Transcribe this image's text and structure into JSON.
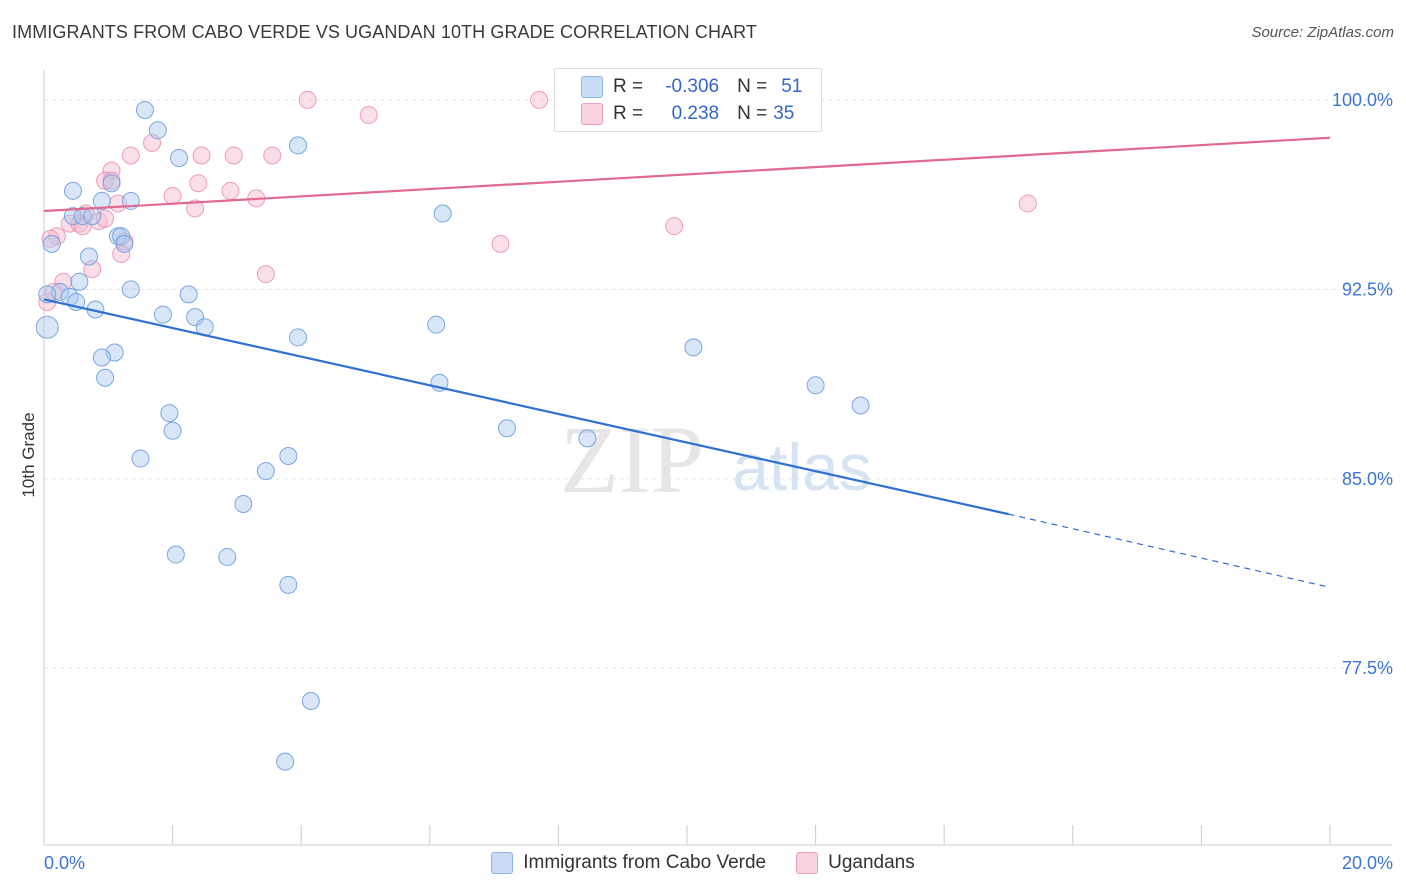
{
  "title": "IMMIGRANTS FROM CABO VERDE VS UGANDAN 10TH GRADE CORRELATION CHART",
  "source": "Source: ZipAtlas.com",
  "colors": {
    "blue_fill": "#a8c8f0",
    "blue_stroke": "#6d9ee0",
    "blue_line": "#2e6fd0",
    "pink_fill": "#f7b8cc",
    "pink_stroke": "#e88aa8",
    "pink_line": "#e06a90",
    "tick_label": "#3d74d4"
  },
  "stats": {
    "row1": {
      "r_label": "R =",
      "r_value": "-0.306",
      "n_label": "N =",
      "n_value": "51"
    },
    "row2": {
      "r_label": "R =",
      "r_value": "0.238",
      "n_label": "N =",
      "n_value": "35"
    }
  },
  "watermark": {
    "zip": "ZIP",
    "atlas": "atlas"
  },
  "chart_data": {
    "type": "scatter",
    "title": "IMMIGRANTS FROM CABO VERDE VS UGANDAN 10TH GRADE CORRELATION CHART",
    "xlabel": "",
    "ylabel": "10th Grade",
    "xlim": [
      0,
      20
    ],
    "ylim": [
      70.5,
      101.5
    ],
    "x_tick_labels": [
      "0.0%",
      "20.0%"
    ],
    "y_ticks": [
      77.5,
      85.0,
      92.5,
      100.0
    ],
    "y_tick_labels": [
      "77.5%",
      "85.0%",
      "92.5%",
      "100.0%"
    ],
    "grid": true,
    "legend_position": "bottom",
    "series": [
      {
        "name": "Immigrants from Cabo Verde",
        "color": "#a8c8f0",
        "trend": {
          "x0": 0.0,
          "y0": 92.1,
          "x1": 15.0,
          "y1": 83.6,
          "dash_to_x": 20.0,
          "dash_to_y": 80.7
        },
        "points": [
          [
            1.57,
            99.6
          ],
          [
            1.77,
            98.8
          ],
          [
            1.05,
            96.7
          ],
          [
            0.45,
            96.4
          ],
          [
            0.9,
            96.0
          ],
          [
            1.35,
            96.0
          ],
          [
            2.1,
            97.7
          ],
          [
            3.95,
            98.2
          ],
          [
            0.45,
            95.4
          ],
          [
            0.6,
            95.4
          ],
          [
            0.75,
            95.4
          ],
          [
            1.15,
            94.6
          ],
          [
            1.2,
            94.6
          ],
          [
            1.25,
            94.3
          ],
          [
            0.12,
            94.3
          ],
          [
            0.7,
            93.8
          ],
          [
            0.25,
            92.4
          ],
          [
            0.4,
            92.2
          ],
          [
            0.5,
            92.0
          ],
          [
            1.35,
            92.5
          ],
          [
            2.25,
            92.3
          ],
          [
            0.8,
            91.7
          ],
          [
            1.85,
            91.5
          ],
          [
            2.35,
            91.4
          ],
          [
            2.5,
            91.0
          ],
          [
            0.05,
            91.0
          ],
          [
            3.95,
            90.6
          ],
          [
            1.1,
            90.0
          ],
          [
            0.9,
            89.8
          ],
          [
            0.95,
            89.0
          ],
          [
            6.1,
            91.1
          ],
          [
            6.15,
            88.8
          ],
          [
            1.95,
            87.6
          ],
          [
            2.0,
            86.9
          ],
          [
            7.2,
            87.0
          ],
          [
            8.45,
            86.6
          ],
          [
            10.1,
            90.2
          ],
          [
            1.5,
            85.8
          ],
          [
            3.45,
            85.3
          ],
          [
            3.8,
            85.9
          ],
          [
            3.1,
            84.0
          ],
          [
            2.05,
            82.0
          ],
          [
            2.85,
            81.9
          ],
          [
            3.8,
            80.8
          ],
          [
            12.0,
            88.7
          ],
          [
            12.7,
            87.9
          ],
          [
            6.2,
            95.5
          ],
          [
            4.15,
            76.2
          ],
          [
            3.75,
            73.8
          ],
          [
            0.05,
            92.3
          ],
          [
            0.55,
            92.8
          ]
        ]
      },
      {
        "name": "Ugandans",
        "color": "#f7b8cc",
        "trend": {
          "x0": 0.0,
          "y0": 95.6,
          "x1": 20.0,
          "y1": 98.5
        },
        "points": [
          [
            4.1,
            100.0
          ],
          [
            7.7,
            100.0
          ],
          [
            5.05,
            99.4
          ],
          [
            1.68,
            98.3
          ],
          [
            1.35,
            97.8
          ],
          [
            2.45,
            97.8
          ],
          [
            2.95,
            97.8
          ],
          [
            3.55,
            97.8
          ],
          [
            1.05,
            97.2
          ],
          [
            0.95,
            96.8
          ],
          [
            2.4,
            96.7
          ],
          [
            2.9,
            96.4
          ],
          [
            2.0,
            96.2
          ],
          [
            3.3,
            96.1
          ],
          [
            1.15,
            95.9
          ],
          [
            2.35,
            95.7
          ],
          [
            0.65,
            95.5
          ],
          [
            0.85,
            95.2
          ],
          [
            0.4,
            95.1
          ],
          [
            0.55,
            95.1
          ],
          [
            0.2,
            94.6
          ],
          [
            0.1,
            94.5
          ],
          [
            1.25,
            94.4
          ],
          [
            1.2,
            93.9
          ],
          [
            0.75,
            93.3
          ],
          [
            3.45,
            93.1
          ],
          [
            0.3,
            92.8
          ],
          [
            0.05,
            92.0
          ],
          [
            7.1,
            94.3
          ],
          [
            9.8,
            95.0
          ],
          [
            15.3,
            95.9
          ],
          [
            0.6,
            95.0
          ],
          [
            1.05,
            96.8
          ],
          [
            0.95,
            95.3
          ],
          [
            0.15,
            92.4
          ]
        ]
      }
    ]
  },
  "legend": {
    "series1": "Immigrants from Cabo Verde",
    "series2": "Ugandans"
  }
}
